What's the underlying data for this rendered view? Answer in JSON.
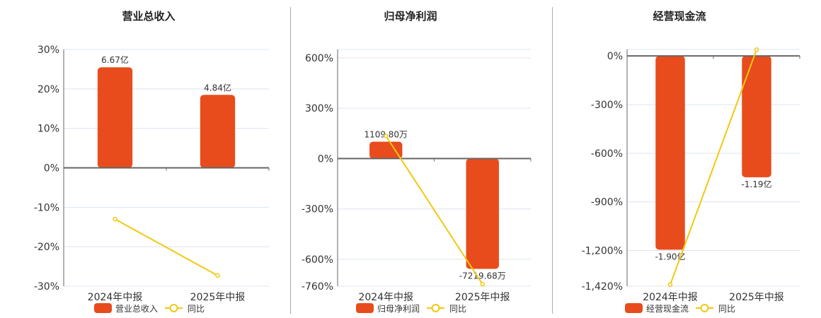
{
  "colors": {
    "bar": "#e84c1c",
    "line": "#f2c811",
    "grid": "#dde4f0",
    "axis": "#666"
  },
  "chart_data": [
    {
      "type": "bar+line",
      "title": "营业总收入",
      "categories": [
        "2024年中报",
        "2025年中报"
      ],
      "bar_series": {
        "name": "营业总收入",
        "values": [
          6.67,
          4.84
        ],
        "unit": "亿",
        "labels": [
          "6.67亿",
          "4.84亿"
        ]
      },
      "line_series": {
        "name": "同比",
        "values": [
          -13.0,
          -27.3
        ],
        "unit": "%"
      },
      "y_ticks": [
        "30%",
        "20%",
        "10%",
        "0%",
        "-10%",
        "-20%",
        "-30%"
      ],
      "ylim": [
        -30,
        30
      ],
      "grid": true,
      "legend": "bottom"
    },
    {
      "type": "bar+line",
      "title": "归母净利润",
      "categories": [
        "2024年中报",
        "2025年中报"
      ],
      "bar_series": {
        "name": "归母净利润",
        "values": [
          1109.8,
          -7219.68
        ],
        "unit": "万",
        "labels": [
          "1109.80万",
          "-7219.68万"
        ]
      },
      "line_series": {
        "name": "同比",
        "values": [
          135,
          -748
        ],
        "unit": "%"
      },
      "y_ticks": [
        "600%",
        "300%",
        "0%",
        "-300%",
        "-600%",
        "-760%"
      ],
      "ylim": [
        -760,
        650
      ],
      "grid": true,
      "legend": "bottom"
    },
    {
      "type": "bar+line",
      "title": "经营现金流",
      "categories": [
        "2024年中报",
        "2025年中报"
      ],
      "bar_series": {
        "name": "经营现金流",
        "values": [
          -1.9,
          -1.19
        ],
        "unit": "亿",
        "labels": [
          "-1.90亿",
          "-1.19亿"
        ]
      },
      "line_series": {
        "name": "同比",
        "values": [
          -1410,
          39
        ],
        "unit": "%"
      },
      "y_ticks": [
        "0%",
        "-300%",
        "-600%",
        "-900%",
        "-1,200%",
        "-1,420%"
      ],
      "ylim": [
        -1420,
        40
      ],
      "grid": true,
      "legend": "bottom"
    }
  ]
}
